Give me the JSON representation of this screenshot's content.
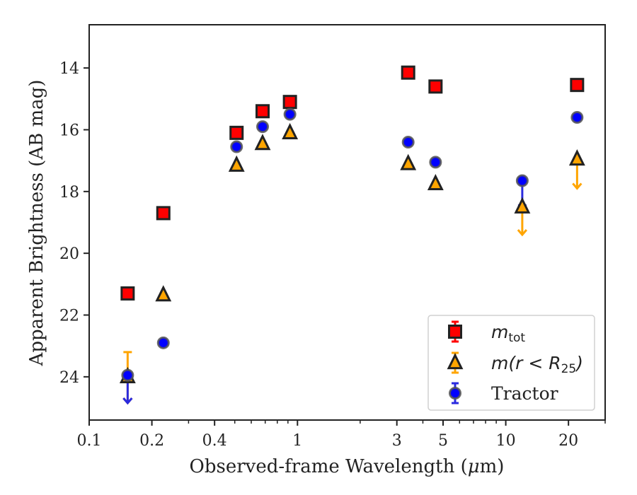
{
  "chart_data": {
    "type": "scatter",
    "title": "",
    "xlabel_prefix": "Observed-frame Wavelength (",
    "xlabel_mu": "μ",
    "xlabel_suffix": "m)",
    "ylabel": "Apparent Brightness (AB mag)",
    "xscale": "log",
    "xlim": [
      0.1,
      30
    ],
    "ylim": [
      25.4,
      12.6
    ],
    "y_inverted": true,
    "x_ticks": [
      0.1,
      0.2,
      0.4,
      1,
      3,
      5,
      10,
      20
    ],
    "x_tick_labels": [
      "0.1",
      "0.2",
      "0.4",
      "1",
      "3",
      "5",
      "10",
      "20"
    ],
    "y_ticks": [
      14,
      16,
      18,
      20,
      22,
      24
    ],
    "y_tick_labels": [
      "14",
      "16",
      "18",
      "20",
      "22",
      "24"
    ],
    "grid": false,
    "legend_position": "bottom-right",
    "series": [
      {
        "name": "m_tot",
        "marker": "square",
        "face_color": "#ff0000",
        "edge_color": "#222222",
        "points": [
          {
            "x": 0.153,
            "y": 21.3
          },
          {
            "x": 0.227,
            "y": 18.7
          },
          {
            "x": 0.51,
            "y": 16.1
          },
          {
            "x": 0.68,
            "y": 15.4
          },
          {
            "x": 0.92,
            "y": 15.1
          },
          {
            "x": 3.4,
            "y": 14.15
          },
          {
            "x": 4.6,
            "y": 14.6
          },
          {
            "x": 22.0,
            "y": 14.55
          }
        ]
      },
      {
        "name": "m(r<R25)",
        "marker": "triangle",
        "face_color": "#ffa500",
        "edge_color": "#222222",
        "error_color": "#ffa500",
        "points": [
          {
            "x": 0.153,
            "y": 24.0,
            "err_low": 23.2,
            "upper_limit_to": 24.85
          },
          {
            "x": 0.227,
            "y": 21.35
          },
          {
            "x": 0.51,
            "y": 17.15
          },
          {
            "x": 0.68,
            "y": 16.45
          },
          {
            "x": 0.92,
            "y": 16.1
          },
          {
            "x": 3.4,
            "y": 17.1
          },
          {
            "x": 4.6,
            "y": 17.75
          },
          {
            "x": 12.0,
            "y": 18.5,
            "upper_limit_to": 19.4
          },
          {
            "x": 22.0,
            "y": 16.95,
            "upper_limit_to": 17.9
          }
        ]
      },
      {
        "name": "Tractor",
        "marker": "circle",
        "face_color": "#0000ff",
        "edge_color": "#555555",
        "error_color": "#2a2adf",
        "points": [
          {
            "x": 0.153,
            "y": 23.95,
            "upper_limit_to": 24.85
          },
          {
            "x": 0.227,
            "y": 22.9
          },
          {
            "x": 0.51,
            "y": 16.55
          },
          {
            "x": 0.68,
            "y": 15.9
          },
          {
            "x": 0.92,
            "y": 15.5
          },
          {
            "x": 3.4,
            "y": 16.4
          },
          {
            "x": 4.6,
            "y": 17.05
          },
          {
            "x": 12.0,
            "y": 17.65,
            "err_low": 18.45
          },
          {
            "x": 22.0,
            "y": 15.6
          }
        ]
      }
    ],
    "legend": [
      {
        "kind": "math",
        "base": "m",
        "sub": "tot",
        "rest": ""
      },
      {
        "kind": "math",
        "base": "m(r < R",
        "sub": "25",
        "rest": ")"
      },
      {
        "kind": "text",
        "text": "Tractor"
      }
    ]
  }
}
